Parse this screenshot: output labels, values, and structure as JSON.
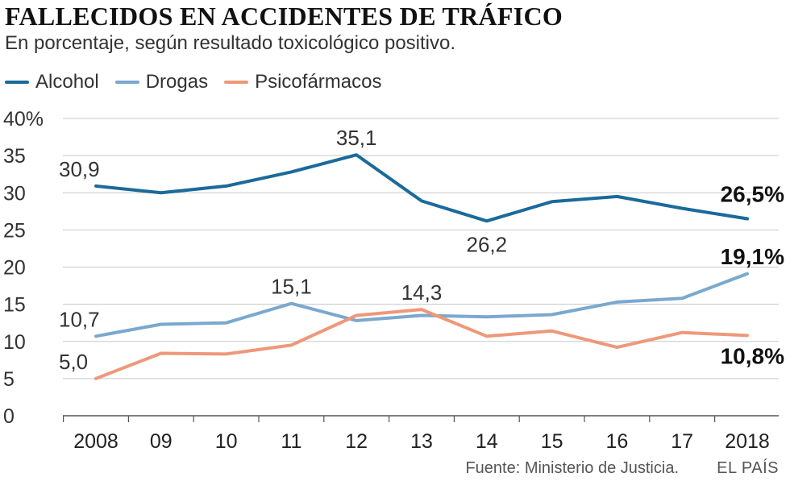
{
  "header": {
    "title": "FALLECIDOS EN ACCIDENTES DE TRÁFICO",
    "subtitle": "En porcentaje, según resultado toxicológico positivo."
  },
  "legend": {
    "items": [
      {
        "label": "Alcohol",
        "color": "#1a6a9a"
      },
      {
        "label": "Drogas",
        "color": "#7aa8cf"
      },
      {
        "label": "Psicofármacos",
        "color": "#ee987a"
      }
    ]
  },
  "footer": {
    "source": "Fuente: Ministerio de Justicia.",
    "brand": "EL PAÍS"
  },
  "chart_data": {
    "type": "line",
    "title": "FALLECIDOS EN ACCIDENTES DE TRÁFICO",
    "subtitle": "En porcentaje, según resultado toxicológico positivo.",
    "categories": [
      "2008",
      "09",
      "10",
      "11",
      "12",
      "13",
      "14",
      "15",
      "16",
      "17",
      "2018"
    ],
    "ylim": [
      0,
      40
    ],
    "yticks": [
      0,
      5,
      10,
      15,
      20,
      25,
      30,
      35,
      40
    ],
    "ytick_labels": [
      "0",
      "5",
      "10",
      "15",
      "20",
      "25",
      "30",
      "35",
      "40%"
    ],
    "grid": "horizontal",
    "series": [
      {
        "name": "Alcohol",
        "color": "#1a6a9a",
        "values": [
          30.9,
          30.0,
          30.9,
          32.8,
          35.1,
          28.9,
          26.2,
          28.8,
          29.5,
          27.9,
          26.5
        ],
        "labels": [
          {
            "index": 0,
            "text": "30,9",
            "bold": false
          },
          {
            "index": 4,
            "text": "35,1",
            "bold": false
          },
          {
            "index": 6,
            "text": "26,2",
            "bold": false
          },
          {
            "index": 10,
            "text": "26,5%",
            "bold": true
          }
        ]
      },
      {
        "name": "Drogas",
        "color": "#7aa8cf",
        "values": [
          10.7,
          12.3,
          12.5,
          15.1,
          12.8,
          13.5,
          13.3,
          13.6,
          15.3,
          15.8,
          19.1
        ],
        "labels": [
          {
            "index": 0,
            "text": "10,7",
            "bold": false
          },
          {
            "index": 3,
            "text": "15,1",
            "bold": false
          },
          {
            "index": 10,
            "text": "19,1%",
            "bold": true
          }
        ]
      },
      {
        "name": "Psicofármacos",
        "color": "#ee987a",
        "values": [
          5.0,
          8.4,
          8.3,
          9.5,
          13.5,
          14.3,
          10.7,
          11.4,
          9.2,
          11.2,
          10.8
        ],
        "labels": [
          {
            "index": 0,
            "text": "5,0",
            "bold": false
          },
          {
            "index": 5,
            "text": "14,3",
            "bold": false
          },
          {
            "index": 10,
            "text": "10,8%",
            "bold": true
          }
        ]
      }
    ]
  }
}
